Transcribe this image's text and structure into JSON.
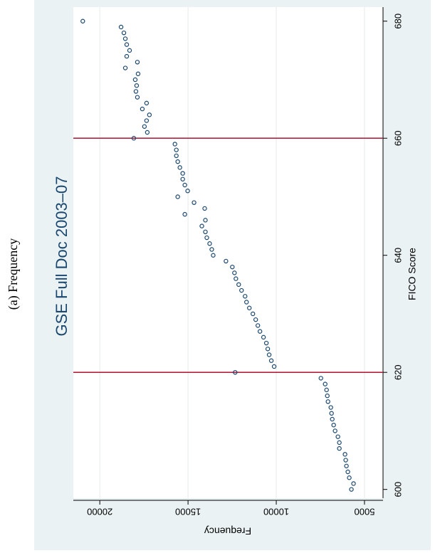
{
  "caption": "(a) Frequency",
  "chart_data": {
    "type": "scatter",
    "title": "GSE Full Doc 2003–07",
    "x_label": "FICO Score",
    "y_label": "Frequency",
    "x": [
      600,
      601,
      602,
      603,
      604,
      605,
      606,
      607,
      608,
      609,
      610,
      611,
      612,
      613,
      614,
      615,
      616,
      617,
      618,
      619,
      620,
      621,
      622,
      623,
      624,
      625,
      626,
      627,
      628,
      629,
      630,
      631,
      632,
      633,
      634,
      635,
      636,
      637,
      638,
      639,
      640,
      641,
      642,
      643,
      644,
      645,
      646,
      647,
      648,
      649,
      650,
      651,
      652,
      653,
      654,
      655,
      656,
      657,
      658,
      659,
      660,
      661,
      662,
      663,
      664,
      665,
      666,
      667,
      668,
      669,
      670,
      671,
      672,
      673,
      674,
      675,
      676,
      677,
      678,
      679,
      680
    ],
    "series": [
      {
        "color": "#1a476f",
        "values": [
          5743,
          5622,
          5863,
          5944,
          6024,
          6064,
          6104,
          6426,
          6426,
          6506,
          6667,
          6747,
          6827,
          6868,
          6908,
          7068,
          7108,
          7149,
          7229,
          7470,
          12329,
          10120,
          10281,
          10402,
          10482,
          10562,
          10723,
          10924,
          11044,
          11165,
          11325,
          11526,
          11687,
          11767,
          11968,
          12129,
          12289,
          12369,
          12490,
          12851,
          13574,
          13655,
          13775,
          13936,
          14016,
          14217,
          14016,
          15181,
          14056,
          14659,
          15582,
          15020,
          15181,
          15301,
          15301,
          15462,
          15582,
          15663,
          15663,
          15743,
          18072,
          17309,
          17470,
          17349,
          17189,
          17590,
          17349,
          17871,
          17952,
          17912,
          17992,
          17831,
          18554,
          17871,
          18474,
          18313,
          18474,
          18554,
          18635,
          18795,
          20964
        ]
      }
    ],
    "xlim": [
      598.5,
      682.4
    ],
    "xticks": [
      600,
      620,
      640,
      660,
      680
    ],
    "ylim": [
      3950,
      21500
    ],
    "yticks": [
      5000,
      10000,
      15000,
      20000
    ],
    "grid": true,
    "xlines": [
      620,
      660
    ],
    "xline_color": "#b5213f",
    "rotation": -90
  }
}
